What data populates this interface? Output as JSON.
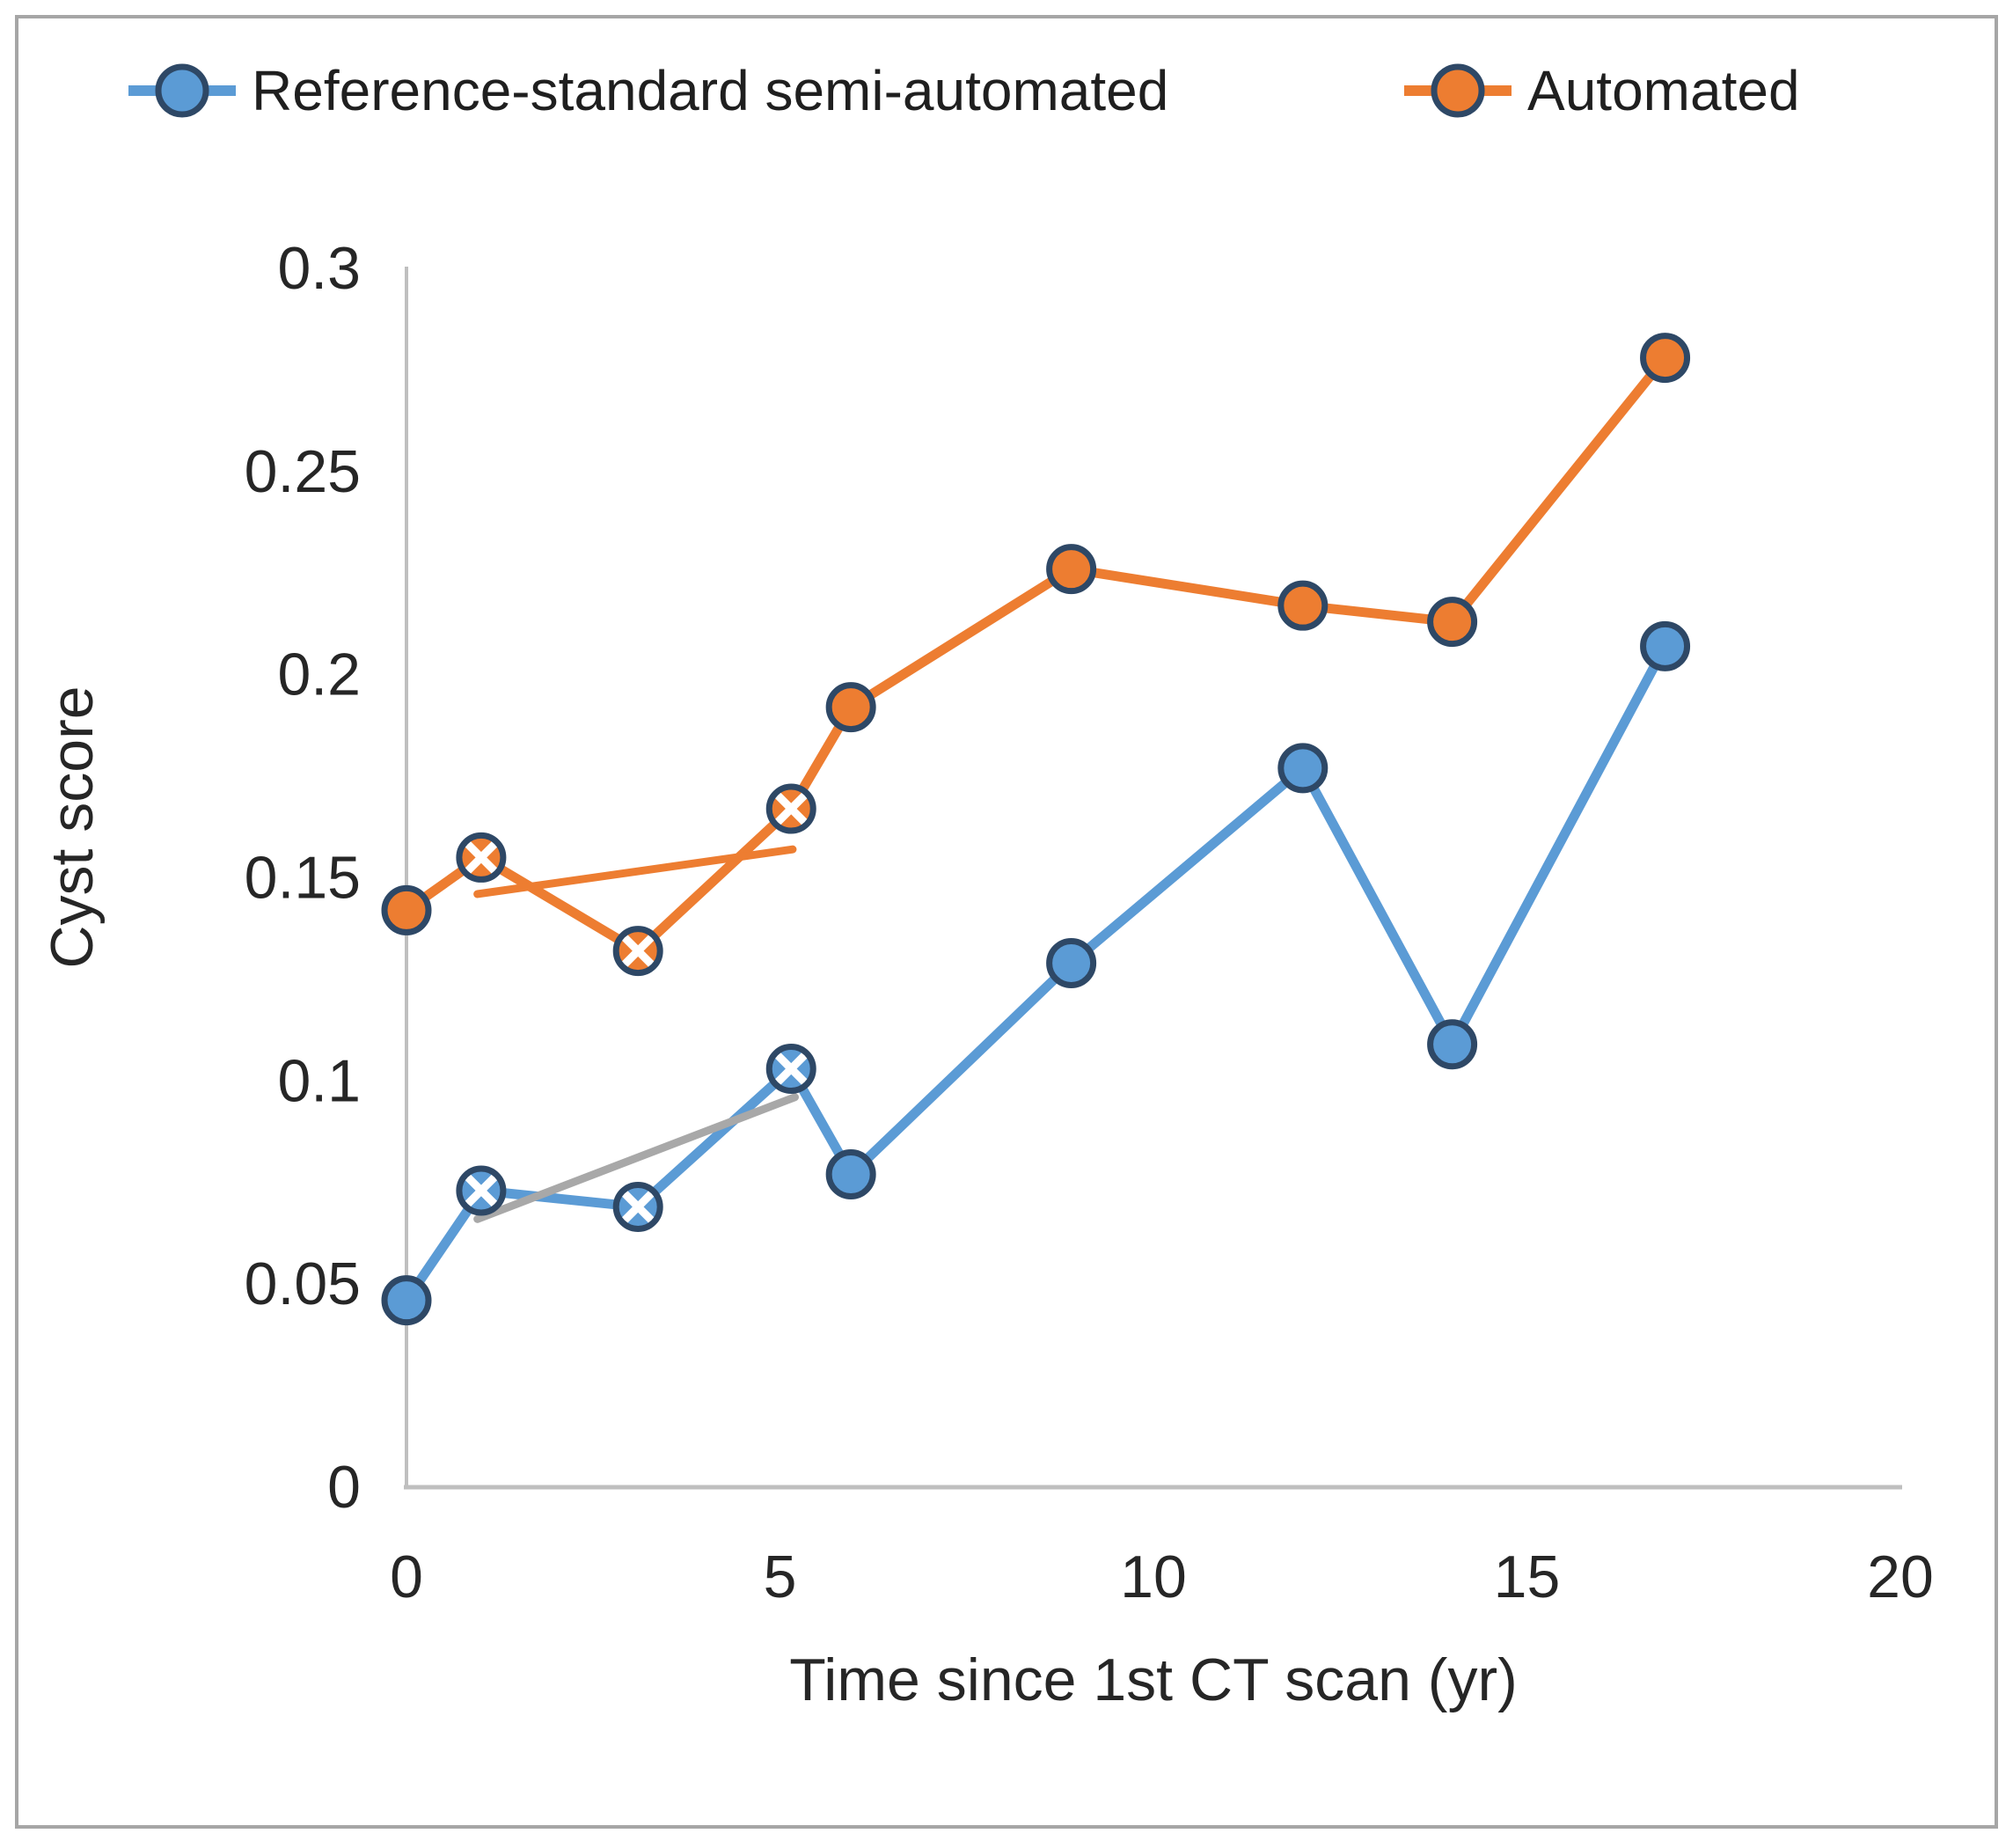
{
  "figure": {
    "background": "#ffffff",
    "border_color": "#a6a6a6"
  },
  "legend": {
    "position": "top-center",
    "items": [
      {
        "label": "Reference-standard semi-automated",
        "color": "#5B9BD5",
        "marker": "circle-on-line"
      },
      {
        "label": "Automated",
        "color": "#ED7D31",
        "marker": "circle-on-line"
      }
    ]
  },
  "axes": {
    "x_title": "Time since 1st CT scan (yr)",
    "y_title": "Cyst score",
    "x_tick_labels": [
      "0",
      "5",
      "10",
      "15",
      "20"
    ],
    "y_tick_labels": [
      "0",
      "0.05",
      "0.1",
      "0.15",
      "0.2",
      "0.25",
      "0.3"
    ]
  },
  "chart_data": {
    "type": "line",
    "title": "",
    "xlabel": "Time since 1st CT scan (yr)",
    "ylabel": "Cyst score",
    "xlim": [
      0,
      20
    ],
    "ylim": [
      0,
      0.3
    ],
    "x_tick_values": [
      0,
      5,
      10,
      15,
      20
    ],
    "y_tick_values": [
      0,
      0.05,
      0.1,
      0.15,
      0.2,
      0.25,
      0.3
    ],
    "grid": false,
    "legend_position": "top",
    "axis_line_color": "#BFBFBF",
    "text_color": "#262626",
    "marker_border_color": "#2E4866",
    "series": [
      {
        "name": "Reference-standard semi-automated",
        "color": "#5B9BD5",
        "x": [
          0,
          1,
          3.1,
          5.15,
          5.95,
          8.9,
          12,
          14,
          16.85
        ],
        "y": [
          0.046,
          0.073,
          0.069,
          0.103,
          0.077,
          0.129,
          0.177,
          0.109,
          0.207
        ],
        "markers": [
          "circle",
          "x",
          "x",
          "x",
          "circle",
          "circle",
          "circle",
          "circle",
          "circle"
        ]
      },
      {
        "name": "Automated",
        "color": "#ED7D31",
        "x": [
          0,
          1,
          3.1,
          5.15,
          5.95,
          8.9,
          12,
          14,
          16.85
        ],
        "y": [
          0.142,
          0.155,
          0.132,
          0.167,
          0.192,
          0.226,
          0.217,
          0.213,
          0.278
        ],
        "markers": [
          "circle",
          "x",
          "x",
          "x",
          "circle",
          "circle",
          "circle",
          "circle",
          "circle"
        ]
      }
    ],
    "trendlines": [
      {
        "name": "semi-automated-trend-segment",
        "color": "#A8A8A8",
        "x": [
          0.95,
          5.2
        ],
        "y": [
          0.066,
          0.096
        ]
      },
      {
        "name": "automated-trend-segment",
        "color": "#ED7D31",
        "x": [
          0.95,
          5.17
        ],
        "y": [
          0.146,
          0.157
        ]
      }
    ]
  }
}
